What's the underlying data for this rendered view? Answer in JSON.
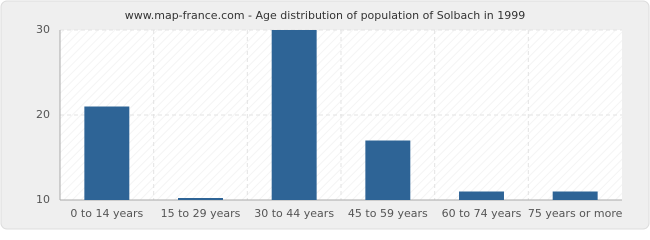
{
  "chart_data": {
    "type": "bar",
    "title": "www.map-france.com - Age distribution of population of Solbach in 1999",
    "categories": [
      "0 to 14 years",
      "15 to 29 years",
      "30 to 44 years",
      "45 to 59 years",
      "60 to 74 years",
      "75 years or more"
    ],
    "values": [
      21,
      10,
      30,
      17,
      11,
      11
    ],
    "color": "#2e6496",
    "ylim": [
      10,
      30
    ],
    "yticks": [
      10,
      20,
      30
    ],
    "grid": true
  }
}
